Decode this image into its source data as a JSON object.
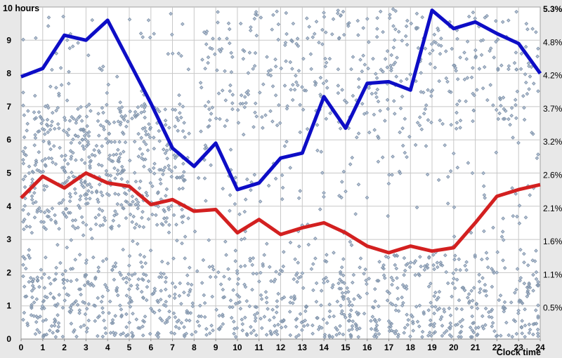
{
  "chart_data": {
    "type": "line+scatter",
    "title": "10 hours",
    "xlabel": "Clock time",
    "x": [
      0,
      1,
      2,
      3,
      4,
      5,
      6,
      7,
      8,
      9,
      10,
      11,
      12,
      13,
      14,
      15,
      16,
      17,
      18,
      19,
      20,
      21,
      22,
      23,
      24
    ],
    "series": [
      {
        "name": "blue-line",
        "color": "#0d0dc6",
        "width": 5,
        "values": [
          7.9,
          8.15,
          9.15,
          9.0,
          9.6,
          8.35,
          7.1,
          5.75,
          5.2,
          5.9,
          4.5,
          4.7,
          5.45,
          5.6,
          7.3,
          6.35,
          7.7,
          7.75,
          7.5,
          9.9,
          9.35,
          9.55,
          9.2,
          8.9,
          8.0
        ]
      },
      {
        "name": "red-line",
        "color": "#d32020",
        "width": 5,
        "values": [
          4.25,
          4.9,
          4.55,
          5.0,
          4.7,
          4.6,
          4.05,
          4.2,
          3.85,
          3.9,
          3.2,
          3.6,
          3.15,
          3.35,
          3.5,
          3.2,
          2.8,
          2.6,
          2.8,
          2.65,
          2.75,
          3.5,
          4.3,
          4.5,
          4.65
        ]
      }
    ],
    "scatter": {
      "marker": "diamond",
      "fill": "#b9c5d7",
      "stroke": "#8295ab",
      "count": 2100,
      "seed": 1337,
      "note": "dense cloud of individual observations; positions not individually legible",
      "clusters": [
        {
          "weight": 0.34,
          "x": [
            0,
            24
          ],
          "y": [
            0.05,
            2.55
          ],
          "bias": "bottom"
        },
        {
          "weight": 0.2,
          "x": [
            0,
            7.6
          ],
          "y": [
            3.3,
            7.1
          ]
        },
        {
          "weight": 0.3,
          "x": [
            0,
            24
          ],
          "y": [
            0.1,
            9.9
          ]
        },
        {
          "weight": 0.16,
          "x": [
            8.5,
            24
          ],
          "y": [
            6.3,
            9.95
          ]
        }
      ]
    },
    "xlim": [
      0,
      24
    ],
    "ylim": [
      0,
      10
    ],
    "grid": true,
    "legend": "none",
    "left_axis_tick_labels": [
      "0",
      "1",
      "2",
      "3",
      "4",
      "5",
      "6",
      "7",
      "8",
      "9"
    ],
    "x_tick_labels": [
      "0",
      "1",
      "2",
      "3",
      "4",
      "5",
      "6",
      "7",
      "8",
      "9",
      "10",
      "11",
      "12",
      "13",
      "14",
      "15",
      "16",
      "17",
      "18",
      "19",
      "20",
      "21",
      "22",
      "23",
      "24"
    ],
    "right_axis_tick_labels_top_to_bottom": [
      "5.3%",
      "4.8%",
      "4.2%",
      "3.7%",
      "3.2%",
      "2.6%",
      "2.1%",
      "1.6%",
      "1.1%",
      "0.5%"
    ],
    "colors": {
      "outer_bg": "#e8e8e8",
      "plot_bg": "#ffffff",
      "grid": "#c8c8c8",
      "border": "#a0a0a0",
      "axis": "#888888",
      "text": "#000000"
    }
  }
}
